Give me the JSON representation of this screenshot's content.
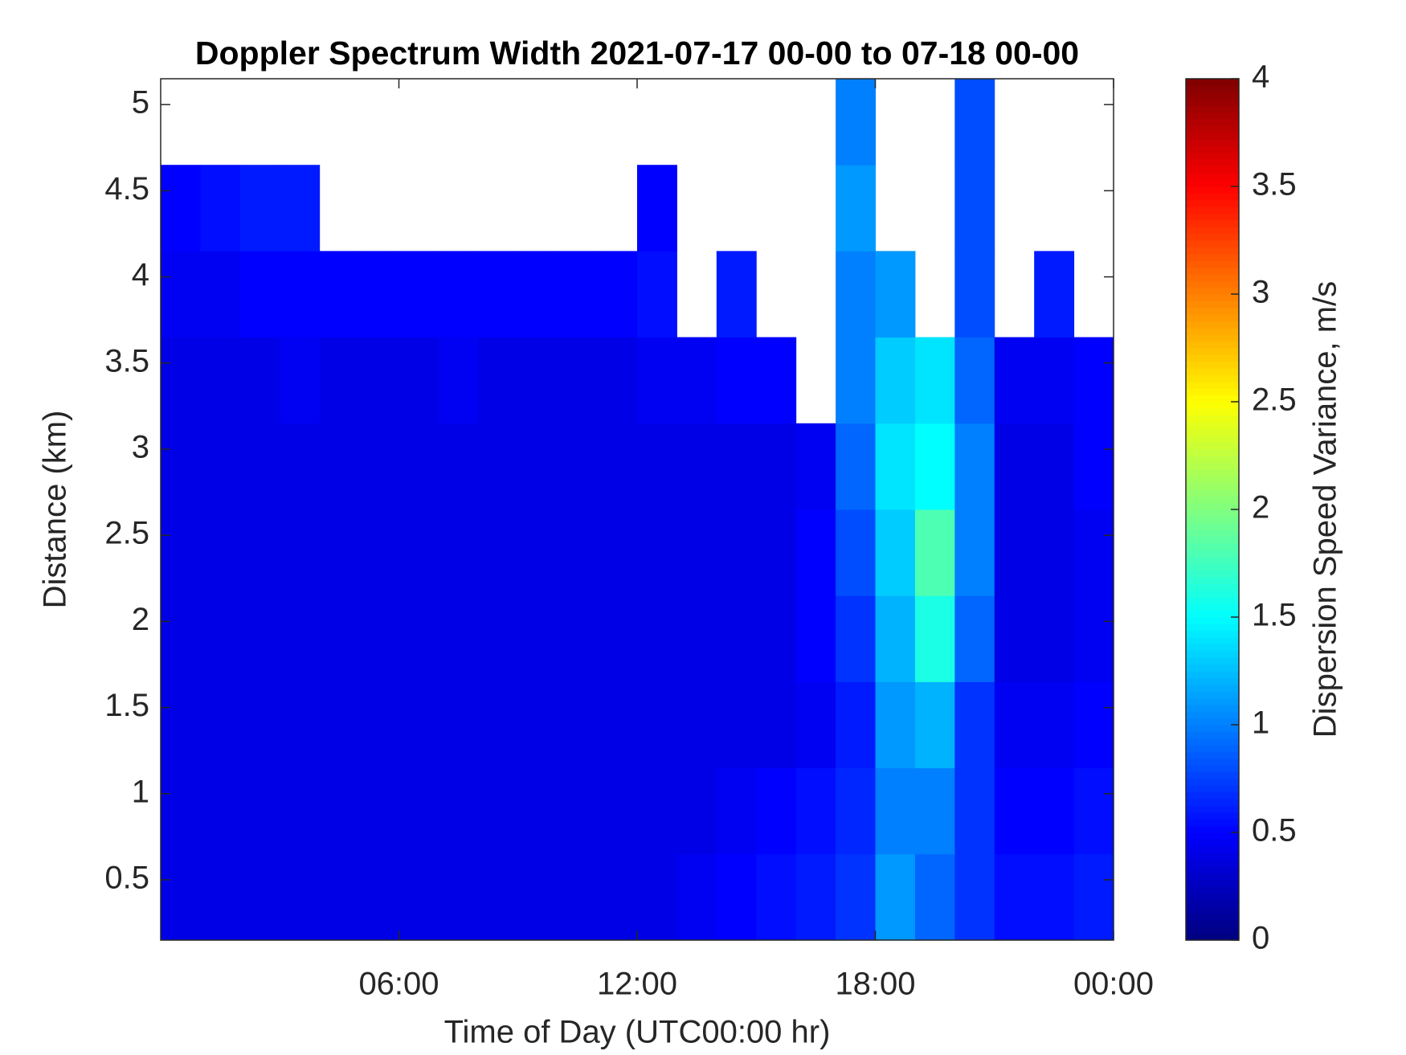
{
  "chart_data": {
    "type": "heatmap",
    "title": "Doppler Spectrum Width 2021-07-17 00-00 to 07-18 00-00",
    "x_label": "Time of Day (UTC00:00 hr)",
    "y_label": "Distance (km)",
    "colorbar_label": "Dispersion Speed Variance, m/s",
    "colormap": "jet",
    "xlim": [
      0,
      24
    ],
    "xticks": [
      {
        "value": 6,
        "label": "06:00"
      },
      {
        "value": 12,
        "label": "12:00"
      },
      {
        "value": 18,
        "label": "18:00"
      },
      {
        "value": 24,
        "label": "00:00"
      }
    ],
    "ylim": [
      0.15,
      5.15
    ],
    "yticks": [
      0.5,
      1,
      1.5,
      2,
      2.5,
      3,
      3.5,
      4,
      4.5,
      5
    ],
    "clim": [
      0,
      4
    ],
    "cticks": [
      0,
      0.5,
      1,
      1.5,
      2,
      2.5,
      3,
      3.5,
      4
    ],
    "xbins": [
      0,
      1,
      2,
      3,
      4,
      5,
      6,
      7,
      8,
      9,
      10,
      11,
      12,
      13,
      14,
      15,
      16,
      17,
      18,
      19,
      20,
      21,
      22,
      23,
      24
    ],
    "ybins": [
      0.15,
      0.65,
      1.15,
      1.65,
      2.15,
      2.65,
      3.15,
      3.65,
      4.15,
      4.65,
      5.15
    ],
    "values": [
      [
        0.4,
        0.4,
        0.4,
        0.4,
        0.4,
        0.4,
        0.4,
        0.4,
        0.4,
        0.4,
        0.4,
        0.4,
        0.4,
        0.45,
        0.5,
        0.55,
        0.6,
        0.7,
        1.1,
        0.9,
        0.7,
        0.55,
        0.55,
        0.6
      ],
      [
        0.4,
        0.4,
        0.4,
        0.4,
        0.4,
        0.4,
        0.4,
        0.4,
        0.4,
        0.4,
        0.4,
        0.4,
        0.4,
        0.4,
        0.45,
        0.5,
        0.55,
        0.65,
        1.0,
        1.0,
        0.7,
        0.5,
        0.5,
        0.55
      ],
      [
        0.4,
        0.4,
        0.4,
        0.4,
        0.4,
        0.4,
        0.4,
        0.4,
        0.4,
        0.4,
        0.4,
        0.4,
        0.4,
        0.4,
        0.4,
        0.4,
        0.45,
        0.6,
        1.1,
        1.2,
        0.7,
        0.45,
        0.45,
        0.5
      ],
      [
        0.4,
        0.4,
        0.4,
        0.4,
        0.4,
        0.4,
        0.4,
        0.4,
        0.4,
        0.4,
        0.4,
        0.4,
        0.4,
        0.4,
        0.4,
        0.4,
        0.5,
        0.7,
        1.2,
        1.6,
        0.9,
        0.4,
        0.4,
        0.45
      ],
      [
        0.4,
        0.4,
        0.4,
        0.4,
        0.4,
        0.4,
        0.4,
        0.4,
        0.4,
        0.4,
        0.4,
        0.4,
        0.4,
        0.4,
        0.4,
        0.4,
        0.5,
        0.8,
        1.3,
        1.8,
        1.0,
        0.4,
        0.4,
        0.45
      ],
      [
        0.4,
        0.4,
        0.4,
        0.4,
        0.4,
        0.4,
        0.4,
        0.4,
        0.4,
        0.4,
        0.4,
        0.4,
        0.4,
        0.4,
        0.4,
        0.4,
        0.45,
        0.9,
        1.4,
        1.5,
        1.0,
        0.4,
        0.4,
        0.5
      ],
      [
        0.4,
        0.4,
        0.4,
        0.45,
        0.4,
        0.4,
        0.4,
        0.45,
        0.4,
        0.4,
        0.4,
        0.4,
        0.45,
        0.45,
        0.5,
        0.5,
        null,
        1.0,
        1.3,
        1.4,
        0.9,
        0.45,
        0.45,
        0.5
      ],
      [
        0.45,
        0.45,
        0.5,
        0.5,
        0.5,
        0.5,
        0.5,
        0.5,
        0.5,
        0.5,
        0.5,
        0.5,
        0.55,
        null,
        0.6,
        null,
        null,
        1.0,
        1.1,
        null,
        0.8,
        null,
        0.6,
        null
      ],
      [
        0.5,
        0.55,
        0.6,
        0.6,
        null,
        null,
        null,
        null,
        null,
        null,
        null,
        null,
        0.5,
        null,
        null,
        null,
        null,
        1.1,
        null,
        null,
        0.8,
        null,
        null,
        null
      ],
      [
        null,
        null,
        null,
        null,
        null,
        null,
        null,
        null,
        null,
        null,
        null,
        null,
        null,
        null,
        null,
        null,
        null,
        1.0,
        null,
        null,
        0.8,
        null,
        null,
        null
      ]
    ]
  }
}
